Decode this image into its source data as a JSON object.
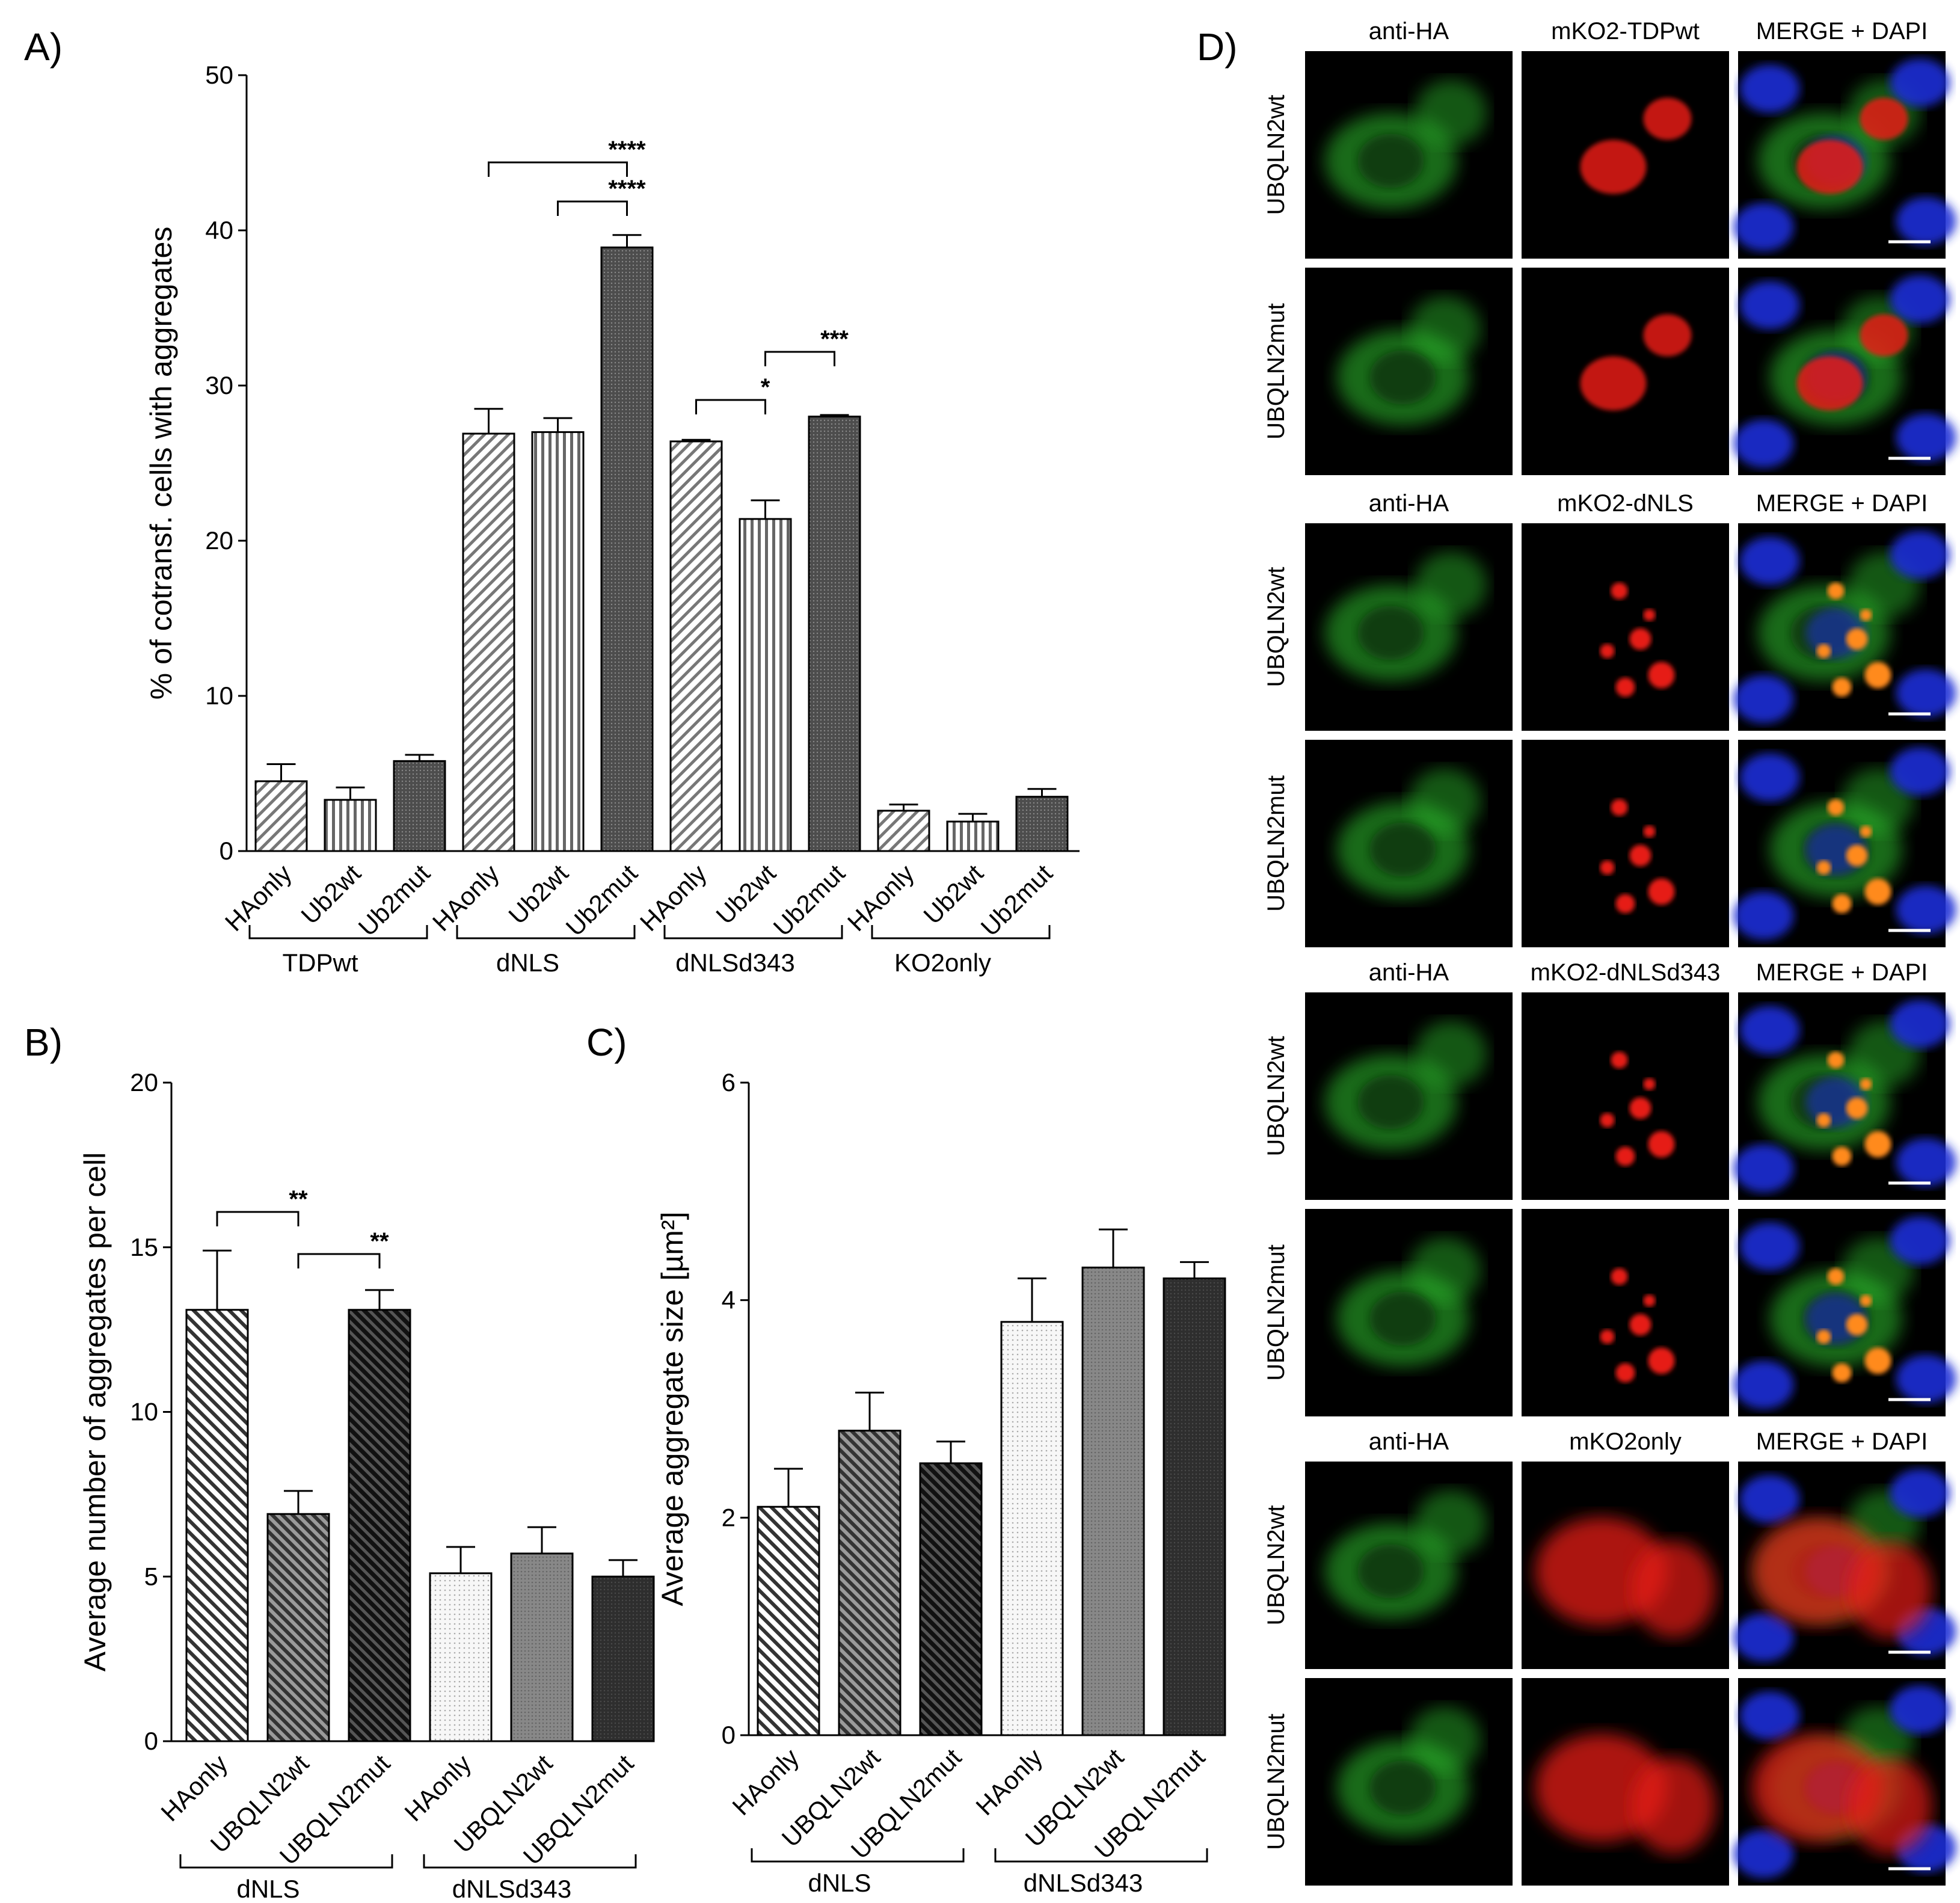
{
  "panel_letters": {
    "A": "A)",
    "B": "B)",
    "C": "C)",
    "D": "D)"
  },
  "chart_data": [
    {
      "id": "A",
      "type": "bar",
      "ylabel": "% of cotransf. cells with aggregates",
      "ylim": [
        0,
        50
      ],
      "yticks": [
        0,
        10,
        20,
        30,
        40,
        50
      ],
      "categories": [
        "HAonly",
        "Ub2wt",
        "Ub2mut",
        "HAonly",
        "Ub2wt",
        "Ub2mut",
        "HAonly",
        "Ub2wt",
        "Ub2mut",
        "HAonly",
        "Ub2wt",
        "Ub2mut"
      ],
      "values": [
        4.5,
        3.3,
        5.8,
        26.9,
        27.0,
        38.9,
        26.4,
        21.4,
        28.0,
        2.6,
        1.9,
        3.5
      ],
      "errors": [
        1.1,
        0.8,
        0.4,
        1.6,
        0.9,
        0.8,
        0.1,
        1.2,
        0.1,
        0.4,
        0.5,
        0.5
      ],
      "patterns": [
        "diag",
        "vert",
        "dots",
        "diag",
        "vert",
        "dots",
        "diag",
        "vert",
        "dots",
        "diag",
        "vert",
        "dots"
      ],
      "groups": [
        {
          "label": "TDPwt",
          "from": 0,
          "to": 2
        },
        {
          "label": "dNLS",
          "from": 3,
          "to": 5
        },
        {
          "label": "dNLSd343",
          "from": 6,
          "to": 8
        },
        {
          "label": "KO2only",
          "from": 9,
          "to": 11
        }
      ],
      "significance": [
        {
          "from": 3,
          "to": 5,
          "label": "****"
        },
        {
          "from": 4,
          "to": 5,
          "label": "****"
        },
        {
          "from": 6,
          "to": 7,
          "label": "*"
        },
        {
          "from": 7,
          "to": 8,
          "label": "***"
        }
      ]
    },
    {
      "id": "B",
      "type": "bar",
      "ylabel": "Average number of aggregates per cell",
      "ylim": [
        0,
        20
      ],
      "yticks": [
        0,
        5,
        10,
        15,
        20
      ],
      "categories": [
        "HAonly",
        "UBQLN2wt",
        "UBQLN2mut",
        "HAonly",
        "UBQLN2wt",
        "UBQLN2mut"
      ],
      "values": [
        13.1,
        6.9,
        13.1,
        5.1,
        5.7,
        5.0
      ],
      "errors": [
        1.8,
        0.7,
        0.6,
        0.8,
        0.8,
        0.5
      ],
      "patterns": [
        "diagLight",
        "diagMid",
        "diagDark",
        "dotsLight",
        "dotsMid",
        "dotsDark"
      ],
      "groups": [
        {
          "label": "dNLS",
          "from": 0,
          "to": 2
        },
        {
          "label": "dNLSd343",
          "from": 3,
          "to": 5
        }
      ],
      "significance": [
        {
          "from": 0,
          "to": 1,
          "label": "**"
        },
        {
          "from": 1,
          "to": 2,
          "label": "**"
        }
      ]
    },
    {
      "id": "C",
      "type": "bar",
      "ylabel": "Average aggregate size [µm²]",
      "ylim": [
        0,
        6
      ],
      "yticks": [
        0,
        2,
        4,
        6
      ],
      "categories": [
        "HAonly",
        "UBQLN2wt",
        "UBQLN2mut",
        "HAonly",
        "UBQLN2wt",
        "UBQLN2mut"
      ],
      "values": [
        2.1,
        2.8,
        2.5,
        3.8,
        4.3,
        4.2
      ],
      "errors": [
        0.35,
        0.35,
        0.2,
        0.4,
        0.35,
        0.15
      ],
      "patterns": [
        "diagLight",
        "diagMid",
        "diagDark",
        "dotsLight",
        "dotsMid",
        "dotsDark"
      ],
      "groups": [
        {
          "label": "dNLS",
          "from": 0,
          "to": 2
        },
        {
          "label": "dNLSd343",
          "from": 3,
          "to": 5
        }
      ],
      "significance": []
    }
  ],
  "microscopy": {
    "blocks": [
      {
        "cols": [
          "anti-HA",
          "mKO2-TDPwt",
          "MERGE + DAPI"
        ],
        "rows": [
          "UBQLN2wt",
          "UBQLN2mut"
        ],
        "red": "nucleus"
      },
      {
        "cols": [
          "anti-HA",
          "mKO2-dNLS",
          "MERGE + DAPI"
        ],
        "rows": [
          "UBQLN2wt",
          "UBQLN2mut"
        ],
        "red": "aggregates"
      },
      {
        "cols": [
          "anti-HA",
          "mKO2-dNLSd343",
          "MERGE + DAPI"
        ],
        "rows": [
          "UBQLN2wt",
          "UBQLN2mut"
        ],
        "red": "aggregates"
      },
      {
        "cols": [
          "anti-HA",
          "mKO2only",
          "MERGE + DAPI"
        ],
        "rows": [
          "UBQLN2wt",
          "UBQLN2mut"
        ],
        "red": "diffuse"
      }
    ],
    "colors": {
      "green": "#2fc22f",
      "red": "#e61a12",
      "blue": "#1f2fd6",
      "orange": "#ff8a1a"
    }
  }
}
